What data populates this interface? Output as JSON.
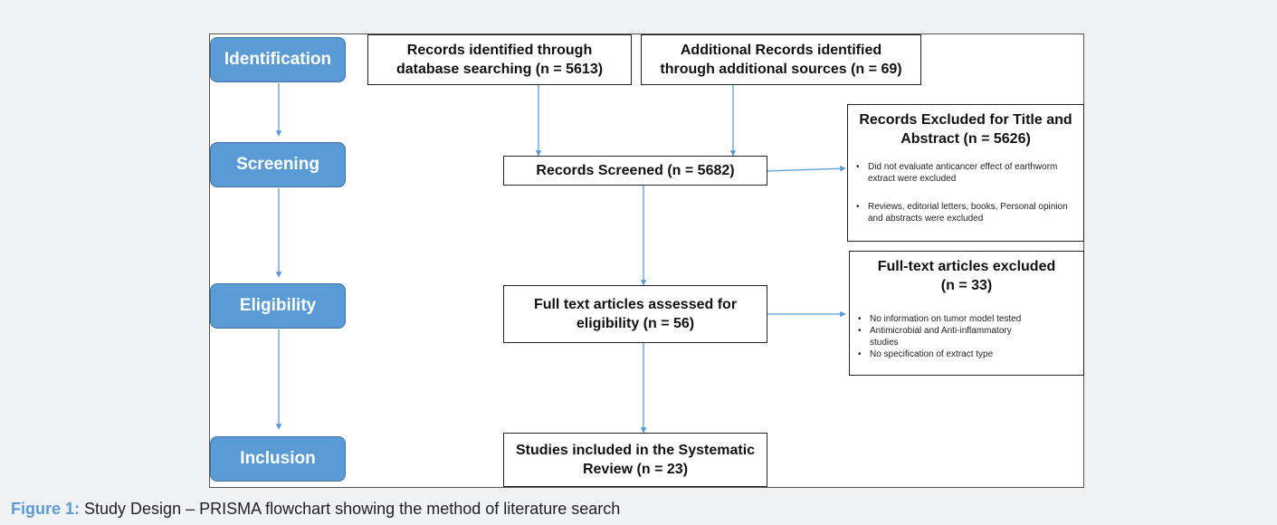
{
  "stages": {
    "identification": "Identification",
    "screening": "Screening",
    "eligibility": "Eligibility",
    "inclusion": "Inclusion"
  },
  "boxes": {
    "database": [
      "Records identified through",
      "database searching (n = 5613)"
    ],
    "additional": [
      "Additional Records identified",
      "through additional sources (n = 69)"
    ],
    "screened": [
      "Records Screened (n = 5682)"
    ],
    "fulltext": [
      "Full text articles assessed for",
      "eligibility (n = 56)"
    ],
    "included": [
      "Studies included in the Systematic",
      "Review (n = 23)"
    ]
  },
  "exclusions": {
    "title_abstract": {
      "title": [
        "Records Excluded for Title and",
        "Abstract (n = 5626)"
      ],
      "items": [
        "Did not evaluate anticancer effect of earthworm extract were excluded",
        "Reviews, editorial letters, books, Personal opinion and abstracts were excluded"
      ]
    },
    "fulltext": {
      "title": [
        "Full-text articles excluded",
        "(n = 33)"
      ],
      "items": [
        "No information on tumor model tested",
        "Antimicrobial and Anti-inflammatory studies",
        "No specification of extract type"
      ]
    }
  },
  "caption": {
    "label": "Figure 1:",
    "text": " Study Design – PRISMA flowchart showing the method of literature search"
  },
  "colors": {
    "stage_fill": "#5b9bd5",
    "arrow": "#5b9bd5",
    "caption_label": "#5b9bd5"
  }
}
